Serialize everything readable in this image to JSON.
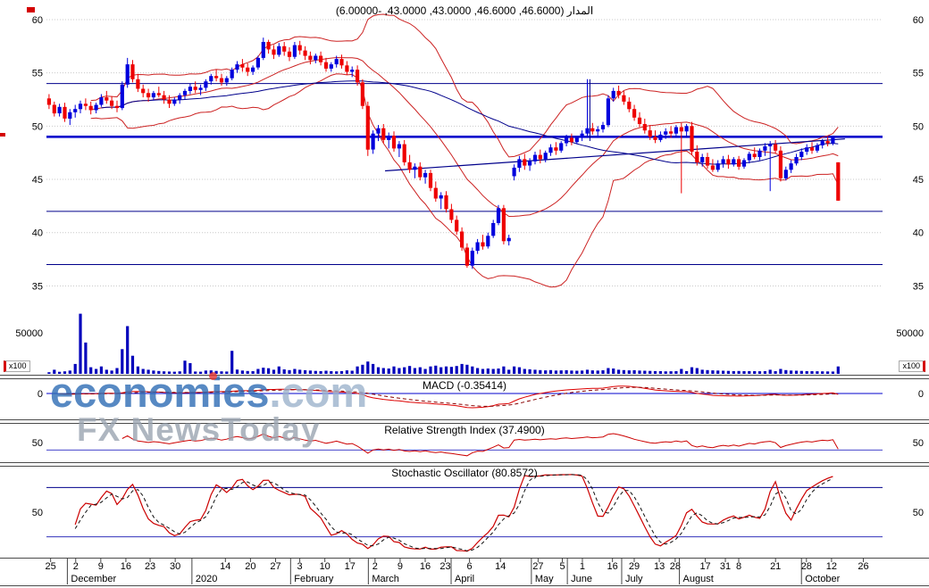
{
  "title": "المدار (46.6000, 46.6000, 43.0000, 43.0000, -6.00000)",
  "watermark": {
    "brand": "economies",
    "tld": ".com",
    "tagline": "FX NewsToday"
  },
  "panels": {
    "macd": {
      "title": "MACD (-0.35414)",
      "level_label": "0"
    },
    "rsi": {
      "title": "Relative Strength Index (37.4900)",
      "level_label": "50"
    },
    "stoch": {
      "title": "Stochastic Oscillator (80.8572)",
      "level_label": "50"
    }
  },
  "price_axis": {
    "labels": [
      60,
      55,
      50,
      45,
      40,
      35
    ]
  },
  "volume_axis": {
    "label": "50000",
    "multiplier": "x100"
  },
  "chart_data": {
    "type": "candlestick",
    "instrument": "المدار",
    "last_quote": {
      "open": 46.6,
      "high": 46.6,
      "low": 43.0,
      "close": 43.0,
      "change_pct": -6.0
    },
    "indicators": {
      "macd": -0.35414,
      "rsi": 37.49,
      "stochastic": 80.8572
    },
    "support_resistance": [
      54,
      49,
      42,
      37
    ],
    "trendline": {
      "f1": 0.405,
      "v1": 45.8,
      "f2": 0.955,
      "v2": 48.8
    },
    "vline": {
      "f": 0.65,
      "v1": 54.4,
      "v2": 48.6
    },
    "x_labels": [
      [
        "25",
        0.005
      ],
      [
        "2",
        0.035
      ],
      [
        "9",
        0.065
      ],
      [
        "16",
        0.095
      ],
      [
        "23",
        0.124
      ],
      [
        "30",
        0.154
      ],
      [
        "14",
        0.214
      ],
      [
        "20",
        0.244
      ],
      [
        "27",
        0.274
      ],
      [
        "3",
        0.303
      ],
      [
        "10",
        0.333
      ],
      [
        "17",
        0.363
      ],
      [
        "2",
        0.393
      ],
      [
        "9",
        0.423
      ],
      [
        "16",
        0.453
      ],
      [
        "23",
        0.477
      ],
      [
        "6",
        0.506
      ],
      [
        "14",
        0.543
      ],
      [
        "27",
        0.588
      ],
      [
        "5",
        0.617
      ],
      [
        "1",
        0.641
      ],
      [
        "16",
        0.677
      ],
      [
        "29",
        0.703
      ],
      [
        "13",
        0.733
      ],
      [
        "28",
        0.752
      ],
      [
        "17",
        0.788
      ],
      [
        "31",
        0.812
      ],
      [
        "8",
        0.828
      ],
      [
        "21",
        0.872
      ],
      [
        "28",
        0.909
      ],
      [
        "12",
        0.939
      ],
      [
        "26",
        0.977
      ]
    ],
    "month_labels": [
      [
        "December",
        0.025
      ],
      [
        "2020",
        0.174
      ],
      [
        "February",
        0.292
      ],
      [
        "March",
        0.385
      ],
      [
        "April",
        0.484
      ],
      [
        "May",
        0.58
      ],
      [
        "June",
        0.623
      ],
      [
        "July",
        0.688
      ],
      [
        "August",
        0.757
      ],
      [
        "October",
        0.903
      ]
    ],
    "candles": [
      [
        52.6,
        53.0,
        51.6,
        52.0,
        2000
      ],
      [
        52.0,
        52.3,
        50.9,
        51.2,
        5000
      ],
      [
        51.2,
        52.1,
        50.9,
        51.8,
        2500
      ],
      [
        51.8,
        52.2,
        50.4,
        50.7,
        3000
      ],
      [
        50.7,
        51.6,
        50.1,
        51.3,
        4000
      ],
      [
        51.3,
        52.0,
        50.8,
        51.6,
        12000
      ],
      [
        51.6,
        52.4,
        51.2,
        52.1,
        73000
      ],
      [
        52.1,
        52.6,
        51.5,
        51.9,
        38000
      ],
      [
        51.9,
        52.3,
        51.1,
        51.5,
        8000
      ],
      [
        51.5,
        52.2,
        51.2,
        52.0,
        6000
      ],
      [
        52.0,
        53.0,
        51.8,
        52.7,
        9000
      ],
      [
        52.7,
        53.3,
        52.1,
        52.4,
        5000
      ],
      [
        52.4,
        52.8,
        51.6,
        51.9,
        4000
      ],
      [
        51.9,
        52.4,
        51.3,
        51.7,
        7000
      ],
      [
        51.7,
        54.2,
        51.5,
        53.9,
        30000
      ],
      [
        53.9,
        56.4,
        53.6,
        55.8,
        58000
      ],
      [
        55.8,
        56.2,
        54.1,
        54.4,
        22000
      ],
      [
        54.4,
        54.9,
        53.2,
        53.5,
        9000
      ],
      [
        53.5,
        53.9,
        52.7,
        53.1,
        6000
      ],
      [
        53.1,
        53.5,
        52.3,
        52.7,
        5000
      ],
      [
        52.7,
        53.3,
        52.4,
        53.1,
        4000
      ],
      [
        53.1,
        53.7,
        52.7,
        52.9,
        3500
      ],
      [
        52.9,
        53.3,
        52.1,
        52.5,
        3000
      ],
      [
        52.5,
        52.9,
        51.7,
        52.1,
        2800
      ],
      [
        52.1,
        52.7,
        51.9,
        52.5,
        2600
      ],
      [
        52.5,
        53.1,
        52.1,
        52.9,
        3000
      ],
      [
        52.9,
        53.5,
        52.5,
        53.3,
        16000
      ],
      [
        53.3,
        54.0,
        53.0,
        53.7,
        13000
      ],
      [
        53.7,
        54.2,
        53.1,
        53.4,
        2800
      ],
      [
        53.4,
        53.9,
        52.9,
        53.6,
        2600
      ],
      [
        53.6,
        54.4,
        53.3,
        54.2,
        4000
      ],
      [
        54.2,
        54.9,
        53.9,
        54.7,
        4200
      ],
      [
        54.7,
        55.3,
        54.2,
        54.5,
        3600
      ],
      [
        54.5,
        54.9,
        53.8,
        54.1,
        3000
      ],
      [
        54.1,
        54.7,
        53.8,
        54.5,
        2800
      ],
      [
        54.5,
        55.5,
        54.3,
        55.3,
        28000
      ],
      [
        55.3,
        56.1,
        55.0,
        55.8,
        5200
      ],
      [
        55.8,
        56.3,
        55.1,
        55.5,
        4000
      ],
      [
        55.5,
        55.9,
        54.7,
        55.1,
        3500
      ],
      [
        55.1,
        55.7,
        54.8,
        55.5,
        3200
      ],
      [
        55.5,
        56.6,
        55.3,
        56.4,
        6000
      ],
      [
        56.4,
        58.3,
        56.2,
        57.9,
        7500
      ],
      [
        57.9,
        58.1,
        56.8,
        57.2,
        6800
      ],
      [
        57.2,
        57.6,
        56.3,
        56.7,
        5000
      ],
      [
        56.7,
        57.8,
        56.5,
        57.5,
        9000
      ],
      [
        57.5,
        57.9,
        56.6,
        57.0,
        5400
      ],
      [
        57.0,
        57.4,
        56.1,
        56.5,
        4600
      ],
      [
        56.5,
        57.9,
        56.3,
        57.6,
        6000
      ],
      [
        57.6,
        58.0,
        56.7,
        57.1,
        5000
      ],
      [
        57.1,
        57.5,
        56.2,
        56.6,
        4400
      ],
      [
        56.6,
        57.0,
        55.8,
        56.2,
        4000
      ],
      [
        56.2,
        56.8,
        55.9,
        56.6,
        3600
      ],
      [
        56.6,
        57.0,
        55.7,
        56.0,
        3400
      ],
      [
        56.0,
        56.4,
        55.1,
        55.4,
        3800
      ],
      [
        55.4,
        56.0,
        55.1,
        55.8,
        3200
      ],
      [
        55.8,
        56.6,
        55.5,
        56.3,
        3000
      ],
      [
        56.3,
        56.7,
        55.4,
        55.7,
        3400
      ],
      [
        55.7,
        56.1,
        54.8,
        55.1,
        4200
      ],
      [
        55.1,
        55.6,
        54.6,
        55.3,
        3800
      ],
      [
        55.3,
        55.7,
        53.8,
        54.1,
        9000
      ],
      [
        54.1,
        54.4,
        51.6,
        51.9,
        11000
      ],
      [
        51.9,
        52.3,
        47.2,
        47.8,
        15000
      ],
      [
        47.8,
        49.6,
        47.4,
        49.3,
        12000
      ],
      [
        49.3,
        50.1,
        48.6,
        49.8,
        8000
      ],
      [
        49.8,
        50.2,
        48.4,
        48.7,
        7000
      ],
      [
        48.7,
        49.4,
        47.9,
        49.1,
        6500
      ],
      [
        49.1,
        49.5,
        47.6,
        47.9,
        9000
      ],
      [
        47.9,
        48.6,
        47.1,
        48.3,
        7000
      ],
      [
        48.3,
        48.7,
        46.3,
        46.6,
        8000
      ],
      [
        46.6,
        47.3,
        45.6,
        45.9,
        9500
      ],
      [
        45.9,
        46.5,
        45.1,
        46.2,
        7000
      ],
      [
        46.2,
        46.6,
        44.9,
        45.2,
        8000
      ],
      [
        45.2,
        45.9,
        44.6,
        45.6,
        6000
      ],
      [
        45.6,
        45.9,
        43.9,
        44.2,
        9000
      ],
      [
        44.2,
        44.8,
        42.9,
        43.2,
        10000
      ],
      [
        43.2,
        43.8,
        42.2,
        43.5,
        8000
      ],
      [
        43.5,
        43.9,
        41.9,
        42.2,
        9000
      ],
      [
        42.2,
        42.7,
        40.9,
        41.2,
        8500
      ],
      [
        41.2,
        41.6,
        39.8,
        40.1,
        9500
      ],
      [
        40.1,
        40.5,
        38.3,
        38.6,
        12000
      ],
      [
        38.6,
        39.0,
        36.7,
        36.9,
        11000
      ],
      [
        36.9,
        38.6,
        36.6,
        38.3,
        9000
      ],
      [
        38.3,
        39.4,
        38.0,
        39.1,
        7000
      ],
      [
        39.1,
        39.8,
        38.4,
        38.7,
        6000
      ],
      [
        38.7,
        40.0,
        38.5,
        39.7,
        6500
      ],
      [
        39.7,
        41.2,
        39.5,
        40.9,
        6000
      ],
      [
        40.9,
        42.6,
        40.7,
        42.3,
        6500
      ],
      [
        42.3,
        42.6,
        38.9,
        39.2,
        9000
      ],
      [
        39.2,
        39.8,
        38.8,
        39.5,
        5000
      ],
      [
        45.3,
        46.4,
        44.9,
        46.1,
        9000
      ],
      [
        46.1,
        47.2,
        45.7,
        46.9,
        8000
      ],
      [
        46.9,
        47.4,
        45.9,
        46.3,
        6000
      ],
      [
        46.3,
        47.0,
        45.8,
        46.7,
        5500
      ],
      [
        46.7,
        47.6,
        46.4,
        47.3,
        5000
      ],
      [
        47.3,
        47.8,
        46.5,
        46.9,
        4500
      ],
      [
        46.9,
        47.7,
        46.6,
        47.5,
        4200
      ],
      [
        47.5,
        48.3,
        47.2,
        48.0,
        4600
      ],
      [
        48.0,
        48.5,
        47.3,
        47.7,
        4000
      ],
      [
        47.7,
        48.6,
        47.5,
        48.4,
        4200
      ],
      [
        48.4,
        49.2,
        48.1,
        48.9,
        4400
      ],
      [
        48.9,
        49.3,
        48.2,
        48.5,
        4000
      ],
      [
        48.5,
        49.1,
        48.3,
        48.9,
        3800
      ],
      [
        48.9,
        49.6,
        48.6,
        49.3,
        4000
      ],
      [
        49.3,
        54.4,
        49.1,
        49.8,
        5000
      ],
      [
        49.8,
        50.3,
        49.2,
        49.5,
        4200
      ],
      [
        49.5,
        50.0,
        48.9,
        49.7,
        4000
      ],
      [
        49.7,
        50.4,
        49.4,
        50.1,
        4300
      ],
      [
        50.1,
        52.9,
        49.9,
        52.6,
        7000
      ],
      [
        52.6,
        53.6,
        52.3,
        53.3,
        6500
      ],
      [
        53.3,
        53.8,
        52.6,
        52.9,
        5000
      ],
      [
        52.9,
        53.3,
        52.0,
        52.3,
        4500
      ],
      [
        52.3,
        52.7,
        51.3,
        51.6,
        4200
      ],
      [
        51.6,
        52.0,
        50.5,
        50.8,
        4400
      ],
      [
        50.8,
        51.3,
        49.9,
        50.2,
        4000
      ],
      [
        50.2,
        50.7,
        49.3,
        49.6,
        3800
      ],
      [
        49.6,
        50.1,
        48.7,
        49.0,
        3600
      ],
      [
        49.0,
        49.6,
        48.4,
        48.7,
        3400
      ],
      [
        48.7,
        49.5,
        48.5,
        49.2,
        3200
      ],
      [
        49.2,
        49.8,
        48.8,
        49.5,
        3000
      ],
      [
        49.5,
        50.0,
        48.9,
        49.3,
        3100
      ],
      [
        49.3,
        50.1,
        49.0,
        49.9,
        3300
      ],
      [
        49.9,
        50.3,
        43.7,
        49.5,
        6000
      ],
      [
        49.5,
        50.2,
        49.1,
        50.0,
        3400
      ],
      [
        50.0,
        50.4,
        47.3,
        47.6,
        8000
      ],
      [
        47.6,
        48.2,
        46.3,
        46.6,
        7000
      ],
      [
        46.6,
        47.4,
        46.2,
        47.1,
        5000
      ],
      [
        47.1,
        47.5,
        46.0,
        46.3,
        4500
      ],
      [
        46.3,
        46.9,
        45.7,
        45.9,
        4200
      ],
      [
        45.9,
        46.8,
        45.7,
        46.5,
        4000
      ],
      [
        46.5,
        47.2,
        46.1,
        46.9,
        3800
      ],
      [
        46.9,
        47.3,
        46.0,
        46.4,
        3600
      ],
      [
        46.4,
        47.1,
        46.2,
        46.9,
        3400
      ],
      [
        46.9,
        47.2,
        45.9,
        46.2,
        3500
      ],
      [
        46.2,
        47.0,
        46.0,
        46.8,
        3300
      ],
      [
        46.8,
        47.6,
        46.5,
        47.4,
        3400
      ],
      [
        47.4,
        48.0,
        46.9,
        47.1,
        3200
      ],
      [
        47.1,
        47.9,
        46.8,
        47.7,
        3100
      ],
      [
        47.7,
        48.4,
        47.2,
        48.1,
        3300
      ],
      [
        48.1,
        48.6,
        43.9,
        48.3,
        5000
      ],
      [
        48.3,
        48.7,
        47.4,
        47.7,
        3200
      ],
      [
        47.7,
        48.1,
        44.8,
        45.1,
        6000
      ],
      [
        45.1,
        46.2,
        44.9,
        45.9,
        4500
      ],
      [
        45.9,
        46.8,
        45.6,
        46.5,
        4000
      ],
      [
        46.5,
        47.4,
        46.3,
        47.1,
        3800
      ],
      [
        47.1,
        47.9,
        46.8,
        47.6,
        3600
      ],
      [
        47.6,
        48.3,
        47.3,
        48.0,
        3400
      ],
      [
        48.0,
        48.5,
        47.4,
        47.7,
        3200
      ],
      [
        47.7,
        48.4,
        47.5,
        48.2,
        3100
      ],
      [
        48.2,
        48.8,
        47.9,
        48.6,
        3000
      ],
      [
        48.6,
        49.0,
        48.1,
        48.4,
        2900
      ],
      [
        48.4,
        49.1,
        48.2,
        48.9,
        2800
      ],
      [
        46.6,
        46.6,
        43.0,
        43.0,
        9000
      ]
    ]
  }
}
